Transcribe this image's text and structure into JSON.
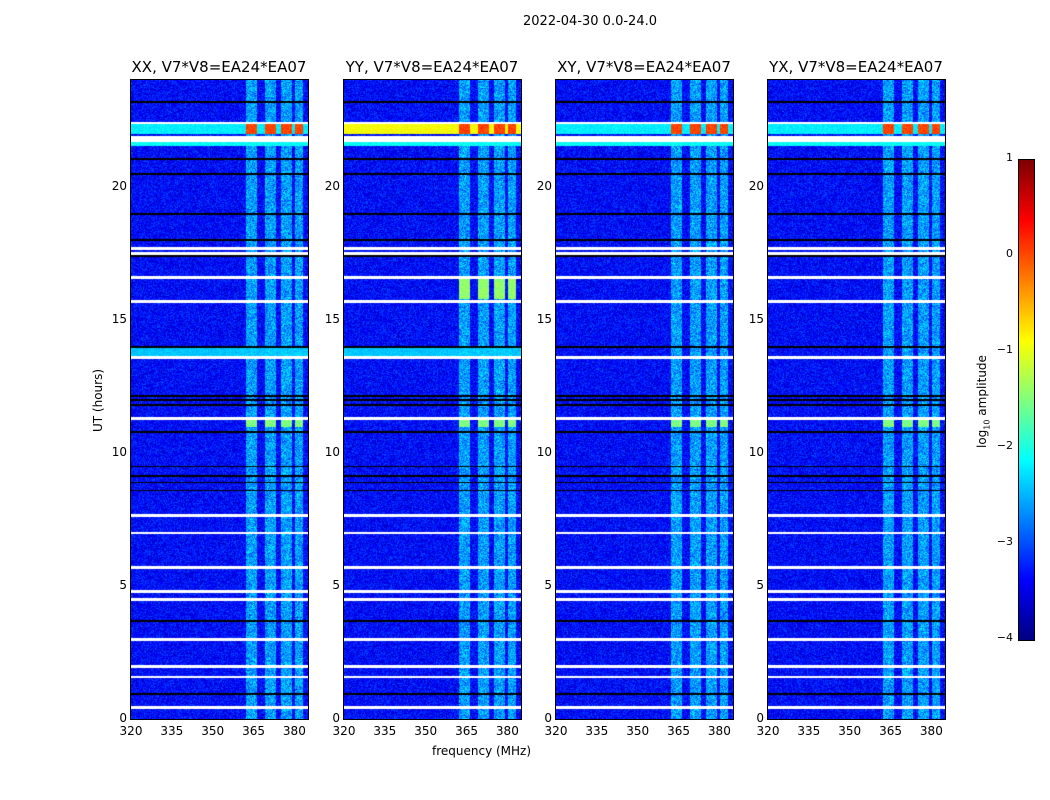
{
  "chart_data": {
    "type": "heatmap",
    "title": "2022-04-30 0.0-24.0",
    "xlabel": "frequency (MHz)",
    "ylabel": "UT (hours)",
    "xlim": [
      320,
      385
    ],
    "ylim": [
      0,
      24
    ],
    "xticks": [
      "320",
      "335",
      "350",
      "365",
      "380"
    ],
    "yticks": [
      "0",
      "5",
      "10",
      "15",
      "20"
    ],
    "panels": [
      {
        "title": "XX, V7*V8=EA24*EA07",
        "pol": "XX"
      },
      {
        "title": "YY, V7*V8=EA24*EA07",
        "pol": "YY"
      },
      {
        "title": "XY, V7*V8=EA24*EA07",
        "pol": "XY"
      },
      {
        "title": "YX, V7*V8=EA24*EA07",
        "pol": "YX"
      }
    ],
    "rfi_channels_mhz": [
      [
        362,
        366
      ],
      [
        369,
        373
      ],
      [
        375,
        379
      ],
      [
        380,
        383
      ]
    ],
    "flagged_white_hours": [
      22.4,
      21.8,
      17.7,
      17.5,
      16.6,
      15.7,
      13.6,
      11.3,
      7.65,
      7.0,
      5.7,
      4.8,
      4.5,
      3.0,
      2.0,
      1.6,
      0.45
    ],
    "black_line_hours": [
      23.2,
      21.05,
      20.5,
      19.0,
      18.0,
      17.4,
      14.0,
      12.15,
      12.0,
      11.8,
      10.8,
      9.5,
      9.15,
      8.9,
      8.6,
      3.7,
      0.95
    ],
    "colorbar": {
      "label": "log10 amplitude",
      "label_main": "log",
      "label_sub": "10",
      "label_rest": " amplitude",
      "range": [
        -4,
        1
      ],
      "ticks": [
        "1",
        "0",
        "−1",
        "−2",
        "−3",
        "−4"
      ],
      "colormap": "jet"
    }
  }
}
